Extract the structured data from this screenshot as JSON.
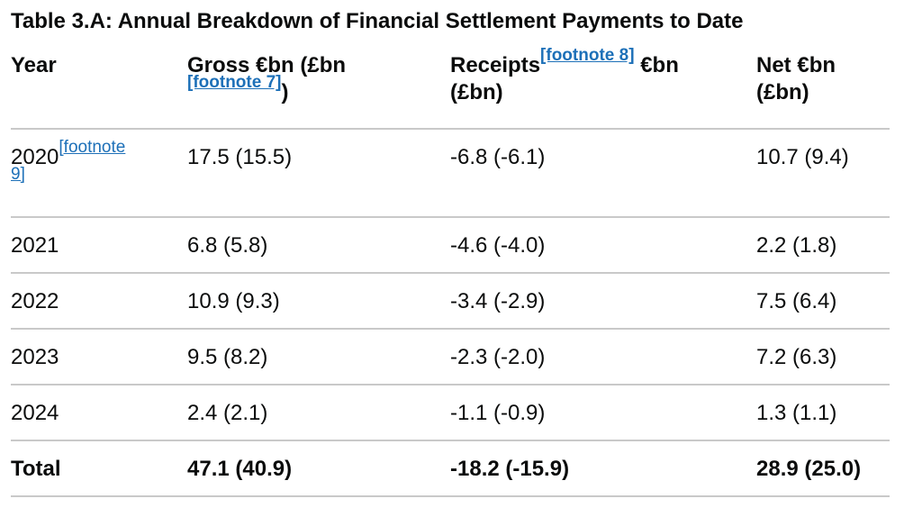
{
  "title": "Table 3.A: Annual Breakdown of Financial Settlement Payments to Date",
  "headers": {
    "year": "Year",
    "gross_a": "Gross €bn (£bn",
    "gross_fn": "[footnote 7]",
    "gross_b": ")",
    "receipts_a": "Receipts",
    "receipts_fn": "[footnote 8]",
    "receipts_b": " €bn",
    "receipts_c": "(£bn)",
    "net_a": "Net €bn",
    "net_b": "(£bn)"
  },
  "rows": [
    {
      "year": "2020",
      "year_fn": "[footnote 9]",
      "gross": "17.5 (15.5)",
      "receipts": "-6.8 (-6.1)",
      "net": "10.7 (9.4)"
    },
    {
      "year": "2021",
      "gross": "6.8 (5.8)",
      "receipts": "-4.6 (-4.0)",
      "net": "2.2 (1.8)"
    },
    {
      "year": "2022",
      "gross": "10.9 (9.3)",
      "receipts": "-3.4 (-2.9)",
      "net": "7.5 (6.4)"
    },
    {
      "year": "2023",
      "gross": "9.5 (8.2)",
      "receipts": "-2.3 (-2.0)",
      "net": "7.2 (6.3)"
    },
    {
      "year": "2024",
      "gross": "2.4 (2.1)",
      "receipts": "-1.1 (-0.9)",
      "net": "1.3 (1.1)"
    }
  ],
  "total": {
    "label": "Total",
    "gross": "47.1 (40.9)",
    "receipts": "-18.2 (-15.9)",
    "net": "28.9 (25.0)"
  },
  "colors": {
    "link": "#1d70b8",
    "text": "#0b0c0c",
    "rule": "#c9c9c9"
  }
}
